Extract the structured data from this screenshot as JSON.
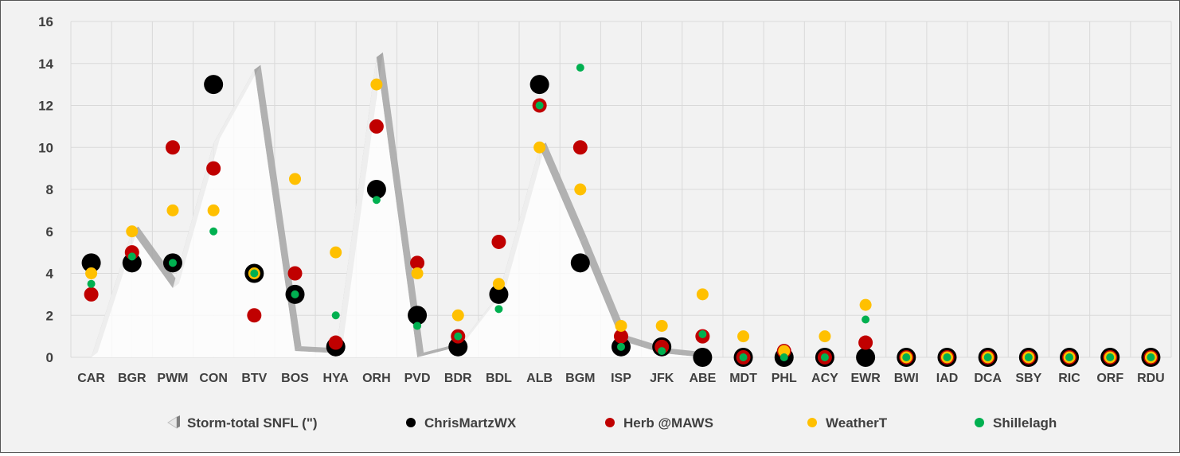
{
  "chart_data": {
    "type": "scatter",
    "categories": [
      "CAR",
      "BGR",
      "PWM",
      "CON",
      "BTV",
      "BOS",
      "HYA",
      "ORH",
      "PVD",
      "BDR",
      "BDL",
      "ALB",
      "BGM",
      "ISP",
      "JFK",
      "ABE",
      "MDT",
      "PHL",
      "ACY",
      "EWR",
      "BWI",
      "IAD",
      "DCA",
      "SBY",
      "RIC",
      "ORF",
      "RDU"
    ],
    "ylim": [
      0,
      16
    ],
    "yticks": [
      "0",
      "2",
      "4",
      "6",
      "8",
      "10",
      "12",
      "14",
      "16"
    ],
    "grid": true,
    "legend_position": "bottom",
    "colors": {
      "ChrisMartzWX": "#000000",
      "Herb": "#c00000",
      "WeatherT": "#ffc000",
      "Shillelagh": "#00b050",
      "observed_face": "#ffffff",
      "observed_side": "#a6a6a6"
    },
    "series": [
      {
        "name": "Storm-total SNFL (\")",
        "style": "3d-area",
        "values": [
          0,
          6,
          3.3,
          10.2,
          13.7,
          0.3,
          0.2,
          14.3,
          0,
          0.5,
          3,
          10,
          5.5,
          0.8,
          0.2,
          0,
          0,
          0,
          0,
          0,
          0,
          0,
          0,
          0,
          0,
          0,
          0
        ]
      },
      {
        "name": "ChrisMartzWX",
        "style": "large-dot",
        "values": [
          4.5,
          4.5,
          4.5,
          13,
          4,
          3,
          0.5,
          8,
          2,
          0.5,
          3,
          13,
          4.5,
          0.5,
          0.5,
          0,
          0,
          0,
          0,
          0,
          0,
          0,
          0,
          0,
          0,
          0,
          0
        ]
      },
      {
        "name": "Herb @MAWS",
        "style": "medium-dot",
        "values": [
          3,
          5,
          10,
          9,
          2,
          4,
          0.7,
          11,
          4.5,
          1,
          5.5,
          12,
          10,
          1,
          0.5,
          1,
          0,
          0.3,
          0,
          0.7,
          0,
          0,
          0,
          0,
          0,
          0,
          0
        ]
      },
      {
        "name": "WeatherT",
        "style": "small-dot",
        "values": [
          4,
          6,
          7,
          7,
          4,
          8.5,
          5,
          13,
          4,
          2,
          3.5,
          10,
          8,
          1.5,
          1.5,
          3,
          1,
          0.3,
          1,
          2.5,
          0,
          0,
          0,
          0,
          0,
          0,
          0
        ]
      },
      {
        "name": "Shillelagh",
        "style": "tiny-dot",
        "values": [
          3.5,
          4.8,
          4.5,
          6,
          4,
          3,
          2,
          7.5,
          1.5,
          1,
          2.3,
          12,
          13.8,
          0.5,
          0.3,
          1.1,
          0,
          0,
          0,
          1.8,
          0,
          0,
          0,
          0,
          0,
          0,
          0
        ]
      }
    ]
  }
}
